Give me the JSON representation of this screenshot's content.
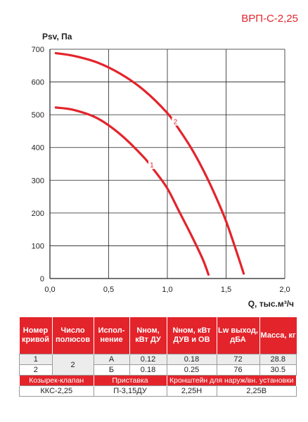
{
  "model": "ВРП-С-2,25",
  "chart_data": {
    "type": "line",
    "ylabel": "Psv, Па",
    "xlabel": "Q, тыс.м³/ч",
    "xlim": [
      0,
      2.0
    ],
    "ylim": [
      0,
      700
    ],
    "xticks": [
      "0,0",
      "0,5",
      "1,0",
      "1,5",
      "2,0"
    ],
    "yticks": [
      "0",
      "100",
      "200",
      "300",
      "400",
      "500",
      "600",
      "700"
    ],
    "grid": true,
    "series": [
      {
        "name": "1",
        "color": "#e3242b",
        "x": [
          0.05,
          0.2,
          0.4,
          0.6,
          0.8,
          0.9,
          1.0,
          1.1,
          1.2,
          1.3,
          1.35
        ],
        "y": [
          522,
          515,
          490,
          440,
          370,
          325,
          275,
          205,
          135,
          60,
          12
        ]
      },
      {
        "name": "2",
        "color": "#e3242b",
        "x": [
          0.05,
          0.2,
          0.4,
          0.6,
          0.8,
          1.0,
          1.1,
          1.2,
          1.3,
          1.4,
          1.5,
          1.6,
          1.65
        ],
        "y": [
          688,
          680,
          660,
          625,
          575,
          505,
          455,
          400,
          335,
          260,
          175,
          70,
          15
        ]
      }
    ]
  },
  "table": {
    "headers": [
      "Номер кривой",
      "Число полюсов",
      "Испол-нение",
      "Nном, кВт ДУ",
      "Nном, кВт ДУВ и ОВ",
      "Lw выход, дБА",
      "Масса, кг"
    ],
    "poles": "2",
    "rows": [
      {
        "curve": "1",
        "variant": "А",
        "n_du": "0.12",
        "n_duv": "0.18",
        "lw": "72",
        "mass": "28.8"
      },
      {
        "curve": "2",
        "variant": "Б",
        "n_du": "0.18",
        "n_duv": "0.25",
        "lw": "76",
        "mass": "30.5"
      }
    ],
    "accessories": [
      {
        "label": "Козырек-клапан",
        "value": "ККС-2,25"
      },
      {
        "label": "Приставка",
        "value": "П-3,15ДУ"
      },
      {
        "label": "Кронштейн для наруж/вн. установки",
        "values": [
          "2,25Н",
          "2,25В"
        ]
      }
    ]
  }
}
